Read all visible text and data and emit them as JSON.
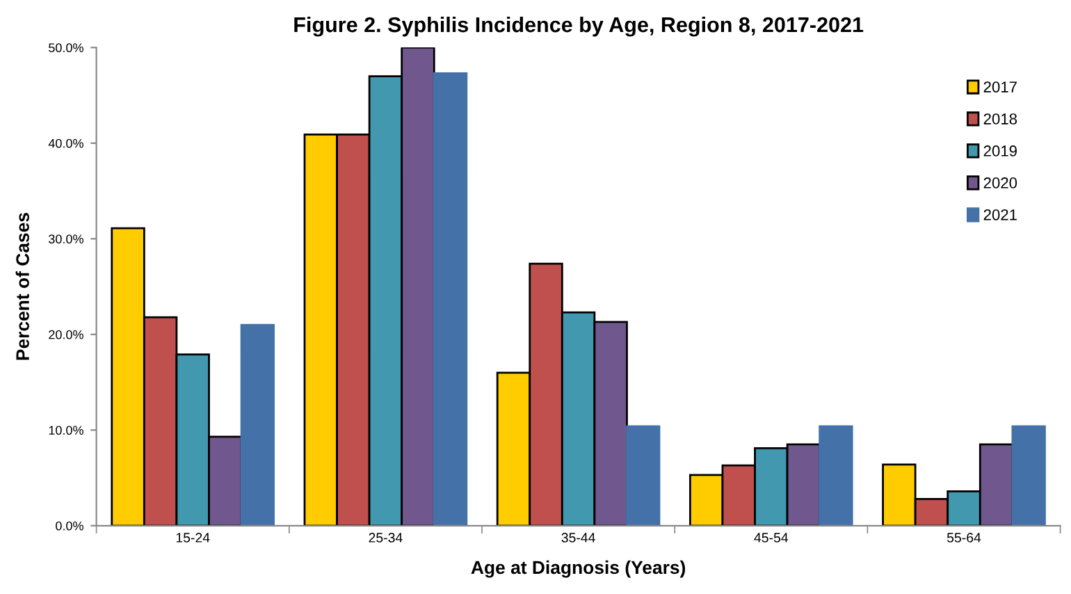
{
  "chart_data": {
    "type": "bar",
    "title": "Figure 2. Syphilis Incidence by Age, Region 8, 2017-2021",
    "xlabel": "Age at Diagnosis (Years)",
    "ylabel": "Percent of Cases",
    "categories": [
      "15-24",
      "25-34",
      "35-44",
      "45-54",
      "55-64"
    ],
    "series": [
      {
        "name": "2017",
        "color": "#ffcc00",
        "values": [
          31.1,
          40.9,
          16.0,
          5.3,
          6.4
        ]
      },
      {
        "name": "2018",
        "color": "#c0504d",
        "values": [
          21.8,
          40.9,
          27.4,
          6.3,
          2.8
        ]
      },
      {
        "name": "2019",
        "color": "#4198af",
        "values": [
          17.9,
          47.0,
          22.3,
          8.1,
          3.6
        ]
      },
      {
        "name": "2020",
        "color": "#70588f",
        "values": [
          9.3,
          50.0,
          21.3,
          8.5,
          8.5
        ]
      },
      {
        "name": "2021",
        "color": "#4472a8",
        "values": [
          21.0,
          47.3,
          10.4,
          10.4,
          10.4
        ]
      }
    ],
    "ylim": [
      0,
      50
    ],
    "yticks": [
      {
        "value": 0,
        "label": "0.0%"
      },
      {
        "value": 10,
        "label": "10.0%"
      },
      {
        "value": 20,
        "label": "20.0%"
      },
      {
        "value": 30,
        "label": "30.0%"
      },
      {
        "value": 40,
        "label": "40.0%"
      },
      {
        "value": 50,
        "label": "50.0%"
      }
    ],
    "legend": "top right",
    "grid": false
  }
}
